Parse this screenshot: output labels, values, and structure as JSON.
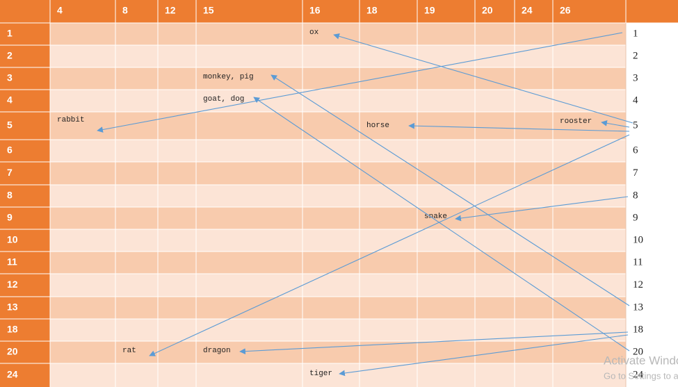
{
  "table": {
    "header": [
      "4",
      "8",
      "12",
      "15",
      "16",
      "18",
      "19",
      "20",
      "24",
      "26"
    ],
    "rows": [
      {
        "label": "1",
        "cells": {
          "16": "ox"
        },
        "side": "1"
      },
      {
        "label": "2",
        "cells": {},
        "side": "2"
      },
      {
        "label": "3",
        "cells": {
          "15": "monkey, pig"
        },
        "side": "3"
      },
      {
        "label": "4",
        "cells": {
          "15": "goat, dog"
        },
        "side": "4"
      },
      {
        "label": "5",
        "cells": {
          "4": "rabbit",
          "18": "horse",
          "26": "rooster"
        },
        "side": "5"
      },
      {
        "label": "6",
        "cells": {},
        "side": "6"
      },
      {
        "label": "7",
        "cells": {},
        "side": "7"
      },
      {
        "label": "8",
        "cells": {},
        "side": "8"
      },
      {
        "label": "9",
        "cells": {
          "19": "snake"
        },
        "side": "9"
      },
      {
        "label": "10",
        "cells": {},
        "side": "10"
      },
      {
        "label": "11",
        "cells": {},
        "side": "11"
      },
      {
        "label": "12",
        "cells": {},
        "side": "12"
      },
      {
        "label": "13",
        "cells": {},
        "side": "13"
      },
      {
        "label": "18",
        "cells": {},
        "side": "18"
      },
      {
        "label": "20",
        "cells": {
          "8": "rat",
          "15": "dragon"
        },
        "side": "20"
      },
      {
        "label": "24",
        "cells": {
          "16": "tiger"
        },
        "side": "24"
      }
    ]
  },
  "watermark": {
    "title": "Activate Windows",
    "subtitle": "Go to Settings to activate Windows."
  }
}
